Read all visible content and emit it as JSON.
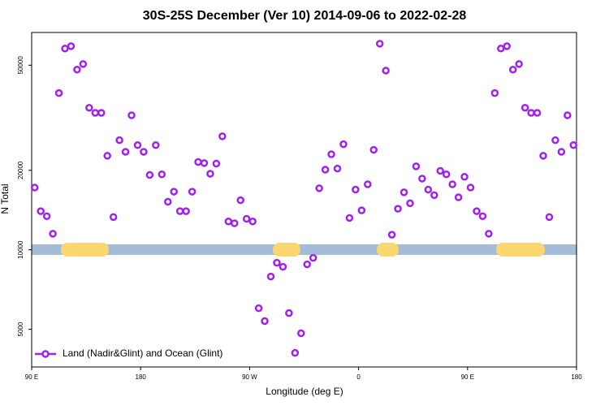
{
  "chart_data": {
    "type": "scatter",
    "title": "30S-25S December (Ver 10)   2014-09-06 to 2022-02-28",
    "xlabel": "Longitude (deg E)",
    "ylabel": "N Total",
    "xlim": [
      90,
      540
    ],
    "ylim": [
      3600,
      66500
    ],
    "log_y": true,
    "legend": "bottom left",
    "xticks": [
      {
        "value": 90,
        "label": "90 E"
      },
      180,
      {
        "value": 270,
        "label": "90 W"
      },
      {
        "value": 360,
        "label": "0"
      },
      {
        "value": 450,
        "label": "90 E"
      },
      {
        "value": 540,
        "label": "180"
      }
    ],
    "yticks": [
      5000,
      10000,
      20000,
      50000
    ],
    "series": [
      {
        "name": "Land (Nadir&Glint) and Ocean (Glint)",
        "color": "#a020f0",
        "x": [
          92.5,
          97.5,
          102.5,
          107.5,
          112.5,
          117.5,
          122.5,
          127.5,
          132.5,
          137.5,
          142.5,
          147.5,
          152.5,
          157.5,
          162.5,
          167.5,
          172.5,
          177.5,
          182.5,
          187.5,
          192.5,
          197.5,
          202.5,
          207.5,
          212.5,
          217.5,
          222.5,
          227.5,
          232.5,
          237.5,
          242.5,
          247.5,
          252.5,
          257.5,
          262.5,
          267.5,
          272.5,
          277.5,
          282.5,
          287.5,
          292.5,
          297.5,
          302.5,
          307.5,
          312.5,
          317.5,
          322.5,
          327.5,
          332.5,
          337.5,
          342.5,
          347.5,
          352.5,
          357.5,
          362.5,
          367.5,
          372.5,
          377.5,
          382.5,
          387.5,
          392.5,
          397.5,
          402.5,
          407.5,
          412.5,
          417.5,
          422.5,
          427.5,
          432.5,
          437.5,
          442.5,
          447.5,
          452.5,
          457.5,
          462.5,
          467.5,
          472.5,
          477.5,
          482.5,
          487.5,
          492.5,
          497.5,
          502.5,
          507.5,
          512.5,
          517.5,
          522.5,
          527.5,
          532.5,
          537.5
        ],
        "values": [
          17200,
          14000,
          13400,
          11500,
          39200,
          57800,
          59000,
          48100,
          50500,
          34500,
          33000,
          33000,
          22700,
          13300,
          26000,
          23500,
          32300,
          24900,
          23500,
          19200,
          24900,
          19300,
          15200,
          16600,
          14000,
          14000,
          16600,
          21500,
          21300,
          19400,
          21200,
          26900,
          12800,
          12600,
          15400,
          13100,
          12800,
          6010,
          5370,
          7920,
          8930,
          8620,
          5760,
          4070,
          4830,
          8810,
          9320,
          17100,
          20100,
          23000,
          20300,
          25100,
          13200,
          16900,
          14100,
          17700,
          23900,
          60300,
          47700,
          11400,
          14300,
          16500,
          15000,
          20700,
          18600,
          16900,
          16100,
          19900,
          19300,
          17700,
          15800,
          18900,
          17200,
          14000,
          13400,
          11500,
          39200,
          57800,
          59000,
          48100,
          50500,
          34500,
          33000,
          33000,
          22700,
          13300,
          26000,
          23500,
          32300,
          24900
        ]
      }
    ]
  }
}
